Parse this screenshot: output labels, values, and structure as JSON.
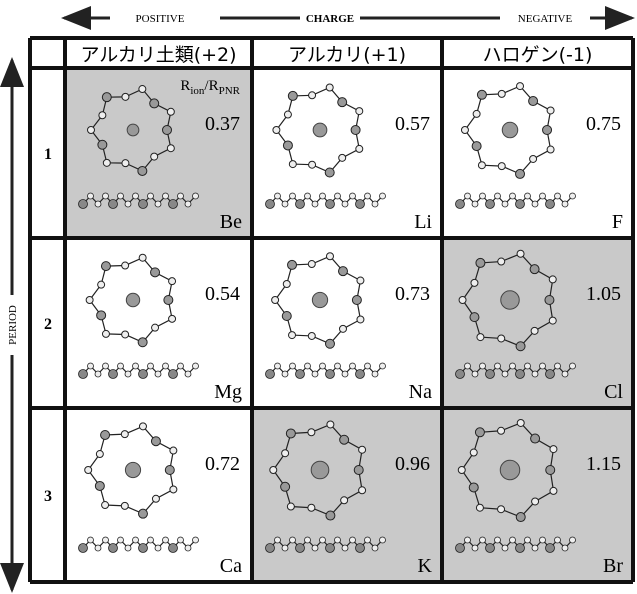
{
  "header": {
    "left": "POSITIVE",
    "center": "CHARGE",
    "right": "NEGATIVE"
  },
  "axis_label": "PERIOD",
  "ratio_label": [
    "R",
    "ion",
    "/R",
    "PNR"
  ],
  "columns": [
    "アルカリ土類(+2)",
    "アルカリ(+1)",
    "ハロゲン(-1)"
  ],
  "rows": [
    {
      "label": "1",
      "cells": [
        {
          "ratio": 0.37,
          "element": "Be",
          "shaded": true
        },
        {
          "ratio": 0.57,
          "element": "Li",
          "shaded": false
        },
        {
          "ratio": 0.75,
          "element": "F",
          "shaded": false
        }
      ]
    },
    {
      "label": "2",
      "cells": [
        {
          "ratio": 0.54,
          "element": "Mg",
          "shaded": false
        },
        {
          "ratio": 0.73,
          "element": "Na",
          "shaded": false
        },
        {
          "ratio": 1.05,
          "element": "Cl",
          "shaded": true
        }
      ]
    },
    {
      "label": "3",
      "cells": [
        {
          "ratio": 0.72,
          "element": "Ca",
          "shaded": false
        },
        {
          "ratio": 0.96,
          "element": "K",
          "shaded": true
        },
        {
          "ratio": 1.15,
          "element": "Br",
          "shaded": true
        }
      ]
    }
  ]
}
